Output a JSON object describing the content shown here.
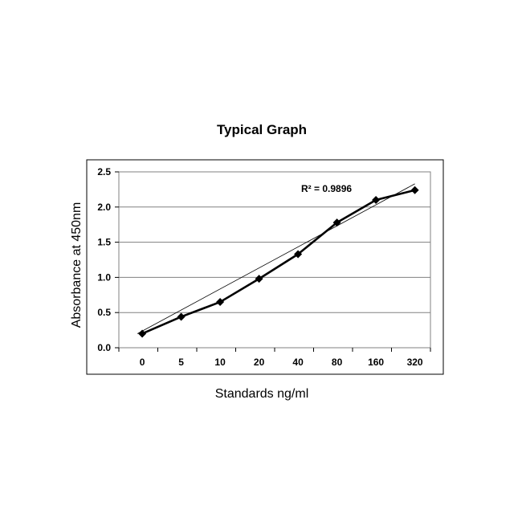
{
  "chart_data": {
    "type": "line",
    "title": "Typical Graph",
    "xlabel": "Standards ng/ml",
    "ylabel": "Absorbance at 450nm",
    "categories": [
      "0",
      "5",
      "10",
      "20",
      "40",
      "80",
      "160",
      "320"
    ],
    "series": [
      {
        "values": [
          0.2,
          0.44,
          0.65,
          0.98,
          1.33,
          1.78,
          2.1,
          2.24
        ]
      }
    ],
    "trendline": {
      "type": "linear",
      "start": 0.2,
      "end": 2.33
    },
    "annotation": "R² = 0.9896",
    "yticks": [
      "0.0",
      "0.5",
      "1.0",
      "1.5",
      "2.0",
      "2.5"
    ],
    "ylim": [
      0,
      2.5
    ],
    "grid": "horizontal",
    "legend": "none",
    "colors": {
      "series": "#000000",
      "trendline": "#000000",
      "grid": "#808080",
      "frame": "#000000"
    },
    "marker": "diamond"
  }
}
